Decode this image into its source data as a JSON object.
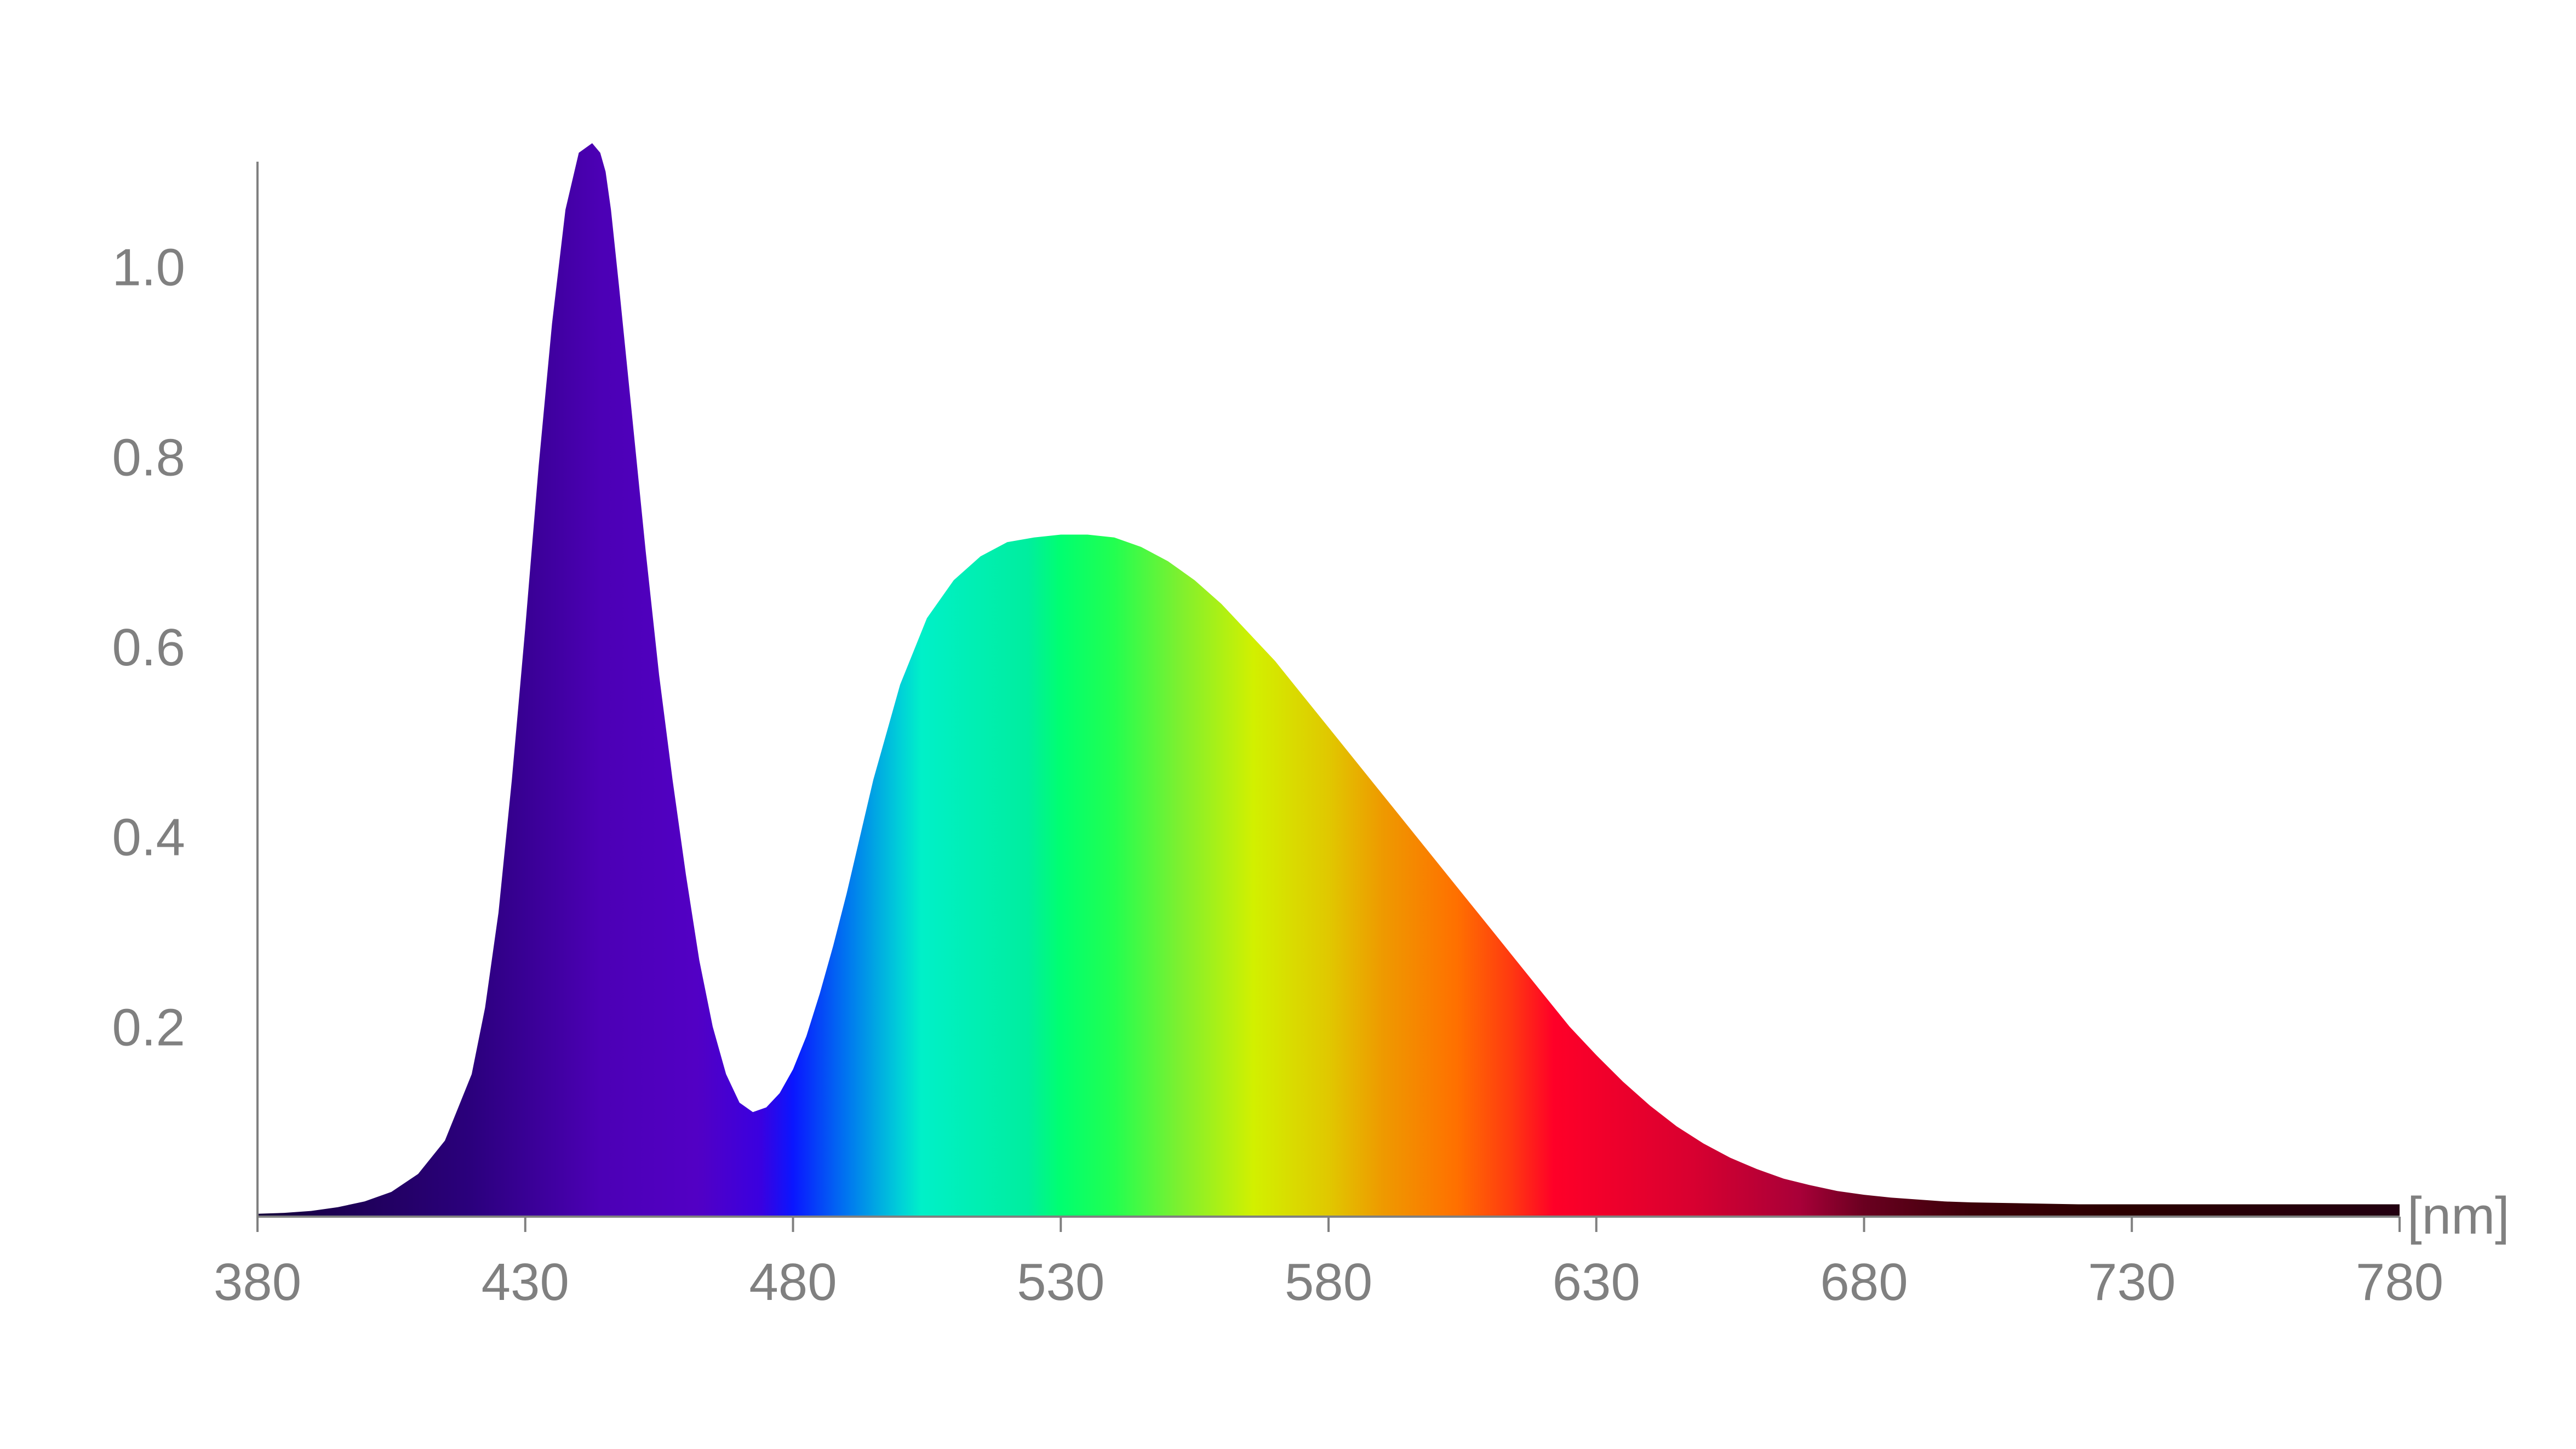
{
  "chart_data": {
    "type": "area",
    "title": "",
    "xlabel": "[nm]",
    "ylabel": "",
    "xlim": [
      380,
      780
    ],
    "ylim": [
      0,
      1.2
    ],
    "x_ticks": [
      380,
      430,
      480,
      530,
      580,
      630,
      680,
      730,
      780
    ],
    "y_ticks": [
      0.2,
      0.4,
      0.6,
      0.8,
      1.0
    ],
    "y_tick_labels": [
      "0.2",
      "0.4",
      "0.6",
      "0.8",
      "1.0"
    ],
    "grid": false,
    "legend": "none",
    "series": [
      {
        "fill": "visible-spectrum gradient",
        "x": [
          380,
          385,
          390,
          395,
          400,
          405,
          410,
          415,
          420,
          422.5,
          425,
          427.5,
          430,
          432.5,
          435,
          437.5,
          440,
          442.5,
          444,
          445,
          446,
          447.5,
          450,
          452.5,
          455,
          457.5,
          460,
          462.5,
          465,
          467.5,
          470,
          472.5,
          475,
          477.5,
          480,
          482.5,
          485,
          487.5,
          490,
          492.5,
          495,
          497.5,
          500,
          505,
          510,
          515,
          520,
          525,
          530,
          535,
          540,
          545,
          550,
          555,
          560,
          565,
          570,
          575,
          580,
          585,
          590,
          595,
          600,
          605,
          610,
          615,
          620,
          625,
          630,
          635,
          640,
          645,
          650,
          655,
          660,
          665,
          670,
          675,
          680,
          685,
          690,
          695,
          700,
          710,
          720,
          730,
          740,
          750,
          760,
          770,
          780
        ],
        "y": [
          0.003,
          0.004,
          0.006,
          0.01,
          0.016,
          0.026,
          0.045,
          0.08,
          0.15,
          0.22,
          0.32,
          0.46,
          0.62,
          0.79,
          0.94,
          1.06,
          1.12,
          1.13,
          1.12,
          1.1,
          1.06,
          0.98,
          0.84,
          0.7,
          0.57,
          0.46,
          0.36,
          0.27,
          0.2,
          0.15,
          0.12,
          0.11,
          0.115,
          0.13,
          0.155,
          0.19,
          0.235,
          0.285,
          0.34,
          0.4,
          0.46,
          0.51,
          0.56,
          0.63,
          0.67,
          0.695,
          0.71,
          0.715,
          0.718,
          0.718,
          0.715,
          0.705,
          0.69,
          0.67,
          0.645,
          0.615,
          0.585,
          0.55,
          0.515,
          0.48,
          0.445,
          0.41,
          0.375,
          0.34,
          0.305,
          0.27,
          0.235,
          0.2,
          0.17,
          0.142,
          0.117,
          0.095,
          0.077,
          0.062,
          0.05,
          0.04,
          0.033,
          0.027,
          0.023,
          0.02,
          0.018,
          0.016,
          0.015,
          0.014,
          0.013,
          0.013,
          0.013,
          0.013,
          0.013,
          0.013,
          0.013
        ]
      }
    ]
  }
}
